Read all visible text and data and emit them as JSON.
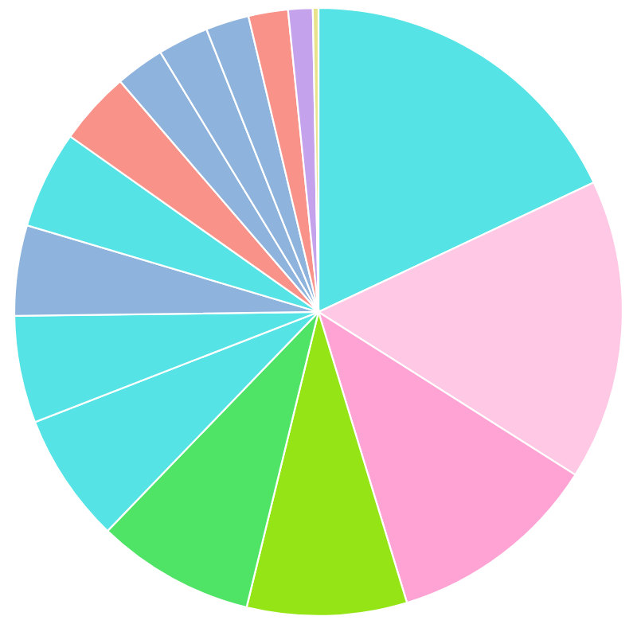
{
  "chart_data": {
    "type": "pie",
    "categories": [
      null,
      null,
      null,
      null,
      null,
      null,
      null,
      null,
      null,
      null,
      null,
      null,
      null,
      null,
      null,
      null
    ],
    "values": [
      18.0,
      16.0,
      11.3,
      8.5,
      8.4,
      6.9,
      5.7,
      4.8,
      5.2,
      3.9,
      2.6,
      2.7,
      2.3,
      2.1,
      1.3,
      0.3
    ],
    "colors": [
      "#56e3e5",
      "#ffc9e6",
      "#ffa3d4",
      "#95e516",
      "#4fe466",
      "#56e3e5",
      "#56e3e5",
      "#8eb3dc",
      "#56e3e5",
      "#f99289",
      "#8eb3dc",
      "#8eb3dc",
      "#8eb3dc",
      "#f99289",
      "#c4a3ec",
      "#e8e28a"
    ]
  }
}
